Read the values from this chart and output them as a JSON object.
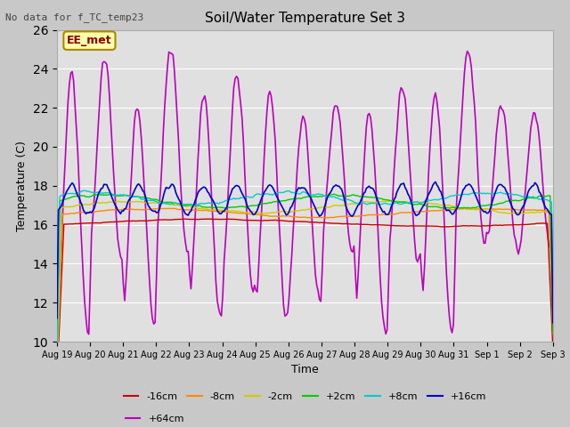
{
  "title": "Soil/Water Temperature Set 3",
  "xlabel": "Time",
  "ylabel": "Temperature (C)",
  "top_left_text": "No data for f_TC_temp23",
  "annotation_label": "EE_met",
  "ylim": [
    10,
    26
  ],
  "yticks": [
    10,
    12,
    14,
    16,
    18,
    20,
    22,
    24,
    26
  ],
  "x_tick_labels": [
    "Aug 19",
    "Aug 20",
    "Aug 21",
    "Aug 22",
    "Aug 23",
    "Aug 24",
    "Aug 25",
    "Aug 26",
    "Aug 27",
    "Aug 28",
    "Aug 29",
    "Aug 30",
    "Aug 31",
    "Sep 1",
    "Sep 2",
    "Sep 3"
  ],
  "series_colors": {
    "-16cm": "#cc0000",
    "-8cm": "#ff8800",
    "-2cm": "#cccc00",
    "+2cm": "#00cc00",
    "+8cm": "#00cccc",
    "+16cm": "#0000cc",
    "+64cm": "#bb00bb"
  },
  "legend_order": [
    "-16cm",
    "-8cm",
    "-2cm",
    "+2cm",
    "+8cm",
    "+16cm",
    "+64cm"
  ],
  "fig_facecolor": "#c8c8c8",
  "ax_facecolor": "#e0e0e0"
}
